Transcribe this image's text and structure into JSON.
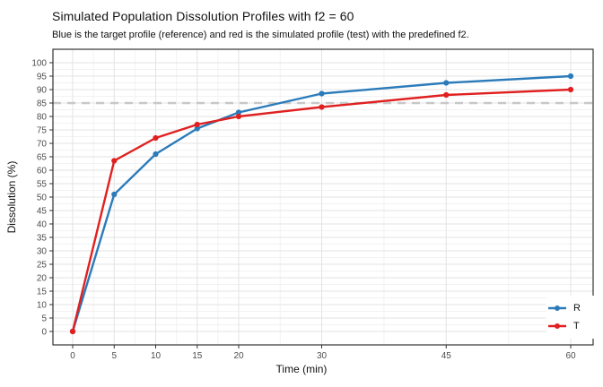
{
  "header": {
    "title": "Simulated Population Dissolution Profiles with f2 = 60",
    "subtitle": "Blue is the target profile (reference) and red is the simulated profile (test) with the predefined f2."
  },
  "chart_data": {
    "type": "line",
    "title": "Simulated Population Dissolution Profiles with f2 = 60",
    "subtitle": "Blue is the target profile (reference) and red is the simulated profile (test) with the predefined f2.",
    "xlabel": "Time (min)",
    "ylabel": "Dissolution (%)",
    "x": [
      0,
      5,
      10,
      15,
      20,
      30,
      45,
      60
    ],
    "x_tick_labels": [
      "0",
      "5",
      "10",
      "15",
      "20",
      "30",
      "45",
      "60"
    ],
    "y_ticks": [
      0,
      5,
      10,
      15,
      20,
      25,
      30,
      35,
      40,
      45,
      50,
      55,
      60,
      65,
      70,
      75,
      80,
      85,
      90,
      95,
      100
    ],
    "ylim": [
      0,
      100
    ],
    "xlim": [
      0,
      60
    ],
    "grid": "on",
    "series": [
      {
        "name": "R",
        "color": "#2b7bba",
        "values": [
          0,
          51,
          66,
          75.5,
          81.5,
          88.5,
          92.5,
          95
        ]
      },
      {
        "name": "T",
        "color": "#e02020",
        "values": [
          0,
          63.5,
          72,
          77,
          80,
          83.5,
          88,
          90
        ]
      }
    ],
    "reference_line": {
      "y": 85,
      "color": "#c8c8c8",
      "style": "dashed"
    },
    "legend": {
      "position": "bottom-right-inside",
      "entries": [
        "R",
        "T"
      ]
    },
    "colors": {
      "panel_border": "#333333",
      "grid_major": "#e3e3e3",
      "grid_minor": "#f2f2f2",
      "tick_label": "#4d4d4d",
      "axis_tick": "#333333"
    }
  }
}
